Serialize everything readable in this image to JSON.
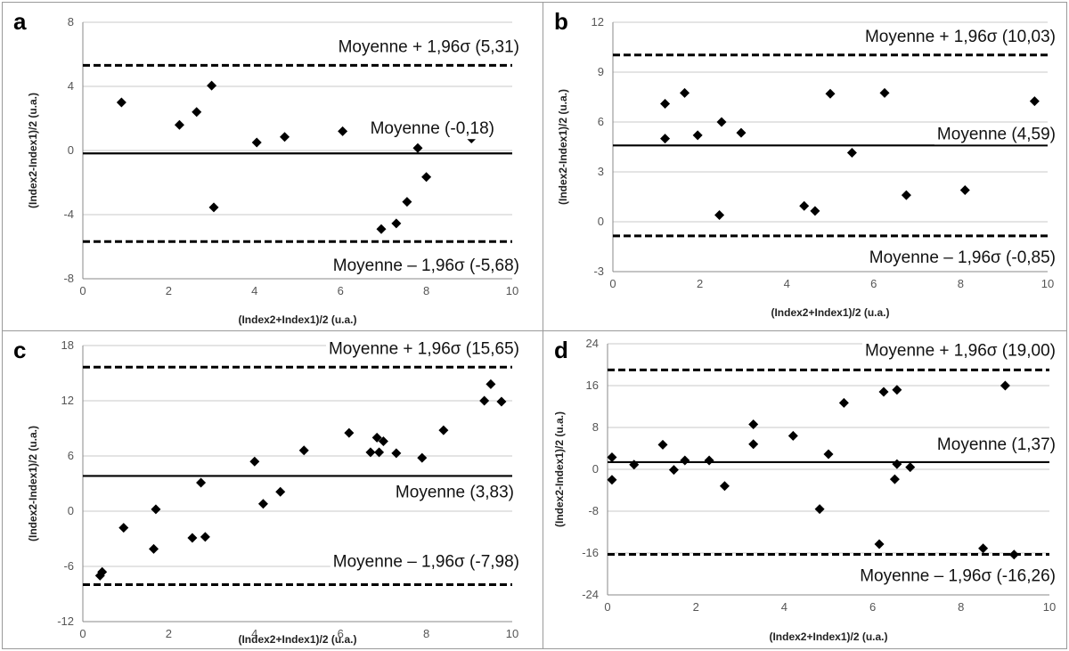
{
  "chart_data": [
    {
      "panel": "a",
      "type": "scatter",
      "xlabel": "(Index2+Index1)/2 (u.a.)",
      "ylabel": "(Index2-Index1)/2 (u.a.)",
      "xlim": [
        0,
        10
      ],
      "ylim": [
        -8,
        8
      ],
      "xticks": [
        0,
        2,
        4,
        6,
        8,
        10
      ],
      "yticks": [
        -8,
        -4,
        0,
        4,
        8
      ],
      "grid": true,
      "points": [
        [
          0.9,
          3.0
        ],
        [
          2.25,
          1.6
        ],
        [
          2.65,
          2.4
        ],
        [
          3.0,
          4.05
        ],
        [
          3.05,
          -3.55
        ],
        [
          4.05,
          0.5
        ],
        [
          4.7,
          0.85
        ],
        [
          6.05,
          1.2
        ],
        [
          6.95,
          -4.9
        ],
        [
          7.3,
          -4.55
        ],
        [
          7.55,
          -3.2
        ],
        [
          7.8,
          0.15
        ],
        [
          8.0,
          -1.65
        ],
        [
          9.05,
          0.75
        ],
        [
          9.05,
          0.95
        ]
      ],
      "lines": [
        {
          "value": 5.31,
          "style": "dashed",
          "label": "Moyenne + 1,96σ (5,31)"
        },
        {
          "value": -0.18,
          "style": "solid",
          "label": "Moyenne (-0,18)"
        },
        {
          "value": -5.68,
          "style": "dashed",
          "label": "Moyenne – 1,96σ (-5,68)"
        }
      ]
    },
    {
      "panel": "b",
      "type": "scatter",
      "xlabel": "(Index2+Index1)/2 (u.a.)",
      "ylabel": "(Index2-Index1)/2 (u.a.)",
      "xlim": [
        0,
        10
      ],
      "ylim": [
        -3,
        12
      ],
      "xticks": [
        0,
        2,
        4,
        6,
        8,
        10
      ],
      "yticks": [
        -3,
        0,
        3,
        6,
        9,
        12
      ],
      "grid": true,
      "points": [
        [
          1.2,
          7.1
        ],
        [
          1.2,
          5.0
        ],
        [
          1.65,
          7.75
        ],
        [
          1.95,
          5.2
        ],
        [
          2.45,
          0.4
        ],
        [
          2.5,
          6.0
        ],
        [
          2.95,
          5.35
        ],
        [
          4.4,
          0.95
        ],
        [
          4.65,
          0.65
        ],
        [
          5.0,
          7.7
        ],
        [
          5.5,
          4.15
        ],
        [
          6.25,
          7.75
        ],
        [
          6.75,
          1.6
        ],
        [
          8.1,
          1.9
        ],
        [
          9.7,
          7.25
        ]
      ],
      "lines": [
        {
          "value": 10.03,
          "style": "dashed",
          "label": "Moyenne + 1,96σ (10,03)"
        },
        {
          "value": 4.59,
          "style": "solid",
          "label": "Moyenne (4,59)"
        },
        {
          "value": -0.85,
          "style": "dashed",
          "label": "Moyenne – 1,96σ (-0,85)"
        }
      ]
    },
    {
      "panel": "c",
      "type": "scatter",
      "xlabel": "(Index2+Index1)/2 (u.a.)",
      "ylabel": "(Index2-Index1)/2 (u.a.)",
      "xlim": [
        0,
        10
      ],
      "ylim": [
        -12,
        18
      ],
      "xticks": [
        0,
        2,
        4,
        6,
        8,
        10
      ],
      "yticks": [
        -12,
        -6,
        0,
        6,
        12,
        18
      ],
      "grid": true,
      "points": [
        [
          0.4,
          -7.0
        ],
        [
          0.45,
          -6.6
        ],
        [
          0.95,
          -1.8
        ],
        [
          1.65,
          -4.1
        ],
        [
          1.7,
          0.2
        ],
        [
          2.55,
          -2.9
        ],
        [
          2.75,
          3.1
        ],
        [
          2.85,
          -2.8
        ],
        [
          4.0,
          5.4
        ],
        [
          4.2,
          0.8
        ],
        [
          4.6,
          2.1
        ],
        [
          5.15,
          6.6
        ],
        [
          6.2,
          8.5
        ],
        [
          6.7,
          6.4
        ],
        [
          6.85,
          8.0
        ],
        [
          6.9,
          6.4
        ],
        [
          7.0,
          7.6
        ],
        [
          7.3,
          6.3
        ],
        [
          7.9,
          5.8
        ],
        [
          8.4,
          8.8
        ],
        [
          9.35,
          12.0
        ],
        [
          9.5,
          13.8
        ],
        [
          9.75,
          11.9
        ]
      ],
      "lines": [
        {
          "value": 15.65,
          "style": "dashed",
          "label": "Moyenne + 1,96σ (15,65)"
        },
        {
          "value": 3.83,
          "style": "solid",
          "label": "Moyenne (3,83)"
        },
        {
          "value": -7.98,
          "style": "dashed",
          "label": "Moyenne – 1,96σ (-7,98)"
        }
      ]
    },
    {
      "panel": "d",
      "type": "scatter",
      "xlabel": "(Index2+Index1)/2 (u.a.)",
      "ylabel": "(Index2-Index1)/2 (u.a.)",
      "xlim": [
        0,
        10
      ],
      "ylim": [
        -24,
        24
      ],
      "xticks": [
        0,
        2,
        4,
        6,
        8,
        10
      ],
      "yticks": [
        -24,
        -16,
        -8,
        0,
        8,
        16,
        24
      ],
      "grid": true,
      "points": [
        [
          0.1,
          2.3
        ],
        [
          0.1,
          -2.0
        ],
        [
          0.6,
          0.9
        ],
        [
          1.25,
          4.7
        ],
        [
          1.5,
          -0.1
        ],
        [
          1.75,
          1.7
        ],
        [
          2.3,
          1.7
        ],
        [
          2.65,
          -3.2
        ],
        [
          3.3,
          8.6
        ],
        [
          3.3,
          4.8
        ],
        [
          4.2,
          6.4
        ],
        [
          4.8,
          -7.6
        ],
        [
          5.0,
          2.9
        ],
        [
          5.35,
          12.7
        ],
        [
          6.15,
          -14.3
        ],
        [
          6.25,
          14.8
        ],
        [
          6.5,
          -1.9
        ],
        [
          6.55,
          1.0
        ],
        [
          6.55,
          15.2
        ],
        [
          6.85,
          0.4
        ],
        [
          8.5,
          -15.1
        ],
        [
          9.0,
          16.0
        ],
        [
          9.2,
          -16.3
        ]
      ],
      "lines": [
        {
          "value": 19.0,
          "style": "dashed",
          "label": "Moyenne + 1,96σ (19,00)"
        },
        {
          "value": 1.37,
          "style": "solid",
          "label": "Moyenne (1,37)"
        },
        {
          "value": -16.26,
          "style": "dashed",
          "label": "Moyenne – 1,96σ (-16,26)"
        }
      ]
    }
  ]
}
